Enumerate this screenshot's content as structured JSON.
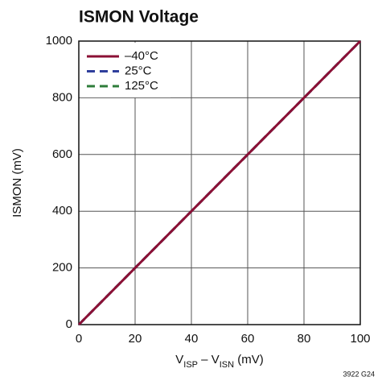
{
  "chart_data": {
    "type": "line",
    "title": "ISMON Voltage",
    "x_label": [
      "V",
      "ISP",
      " – V",
      "ISN",
      " (mV)"
    ],
    "y_label": "ISMON (mV)",
    "footnote": "3922 G24",
    "x": [
      0,
      100
    ],
    "series": [
      {
        "name": "–40°C",
        "color": "#8b1035",
        "dash": "solid",
        "values": [
          0,
          1000
        ]
      },
      {
        "name": "25°C",
        "color": "#2f3f9c",
        "dash": "dashed",
        "values": [
          0,
          1000
        ]
      },
      {
        "name": "125°C",
        "color": "#2e7d3a",
        "dash": "dashed",
        "values": [
          0,
          1000
        ]
      }
    ],
    "xlim": [
      0,
      100
    ],
    "xticks": [
      0,
      20,
      40,
      60,
      80,
      100
    ],
    "ylim": [
      0,
      1000
    ],
    "yticks": [
      0,
      200,
      400,
      600,
      800,
      1000
    ],
    "grid": true,
    "legend": "upper-left"
  }
}
